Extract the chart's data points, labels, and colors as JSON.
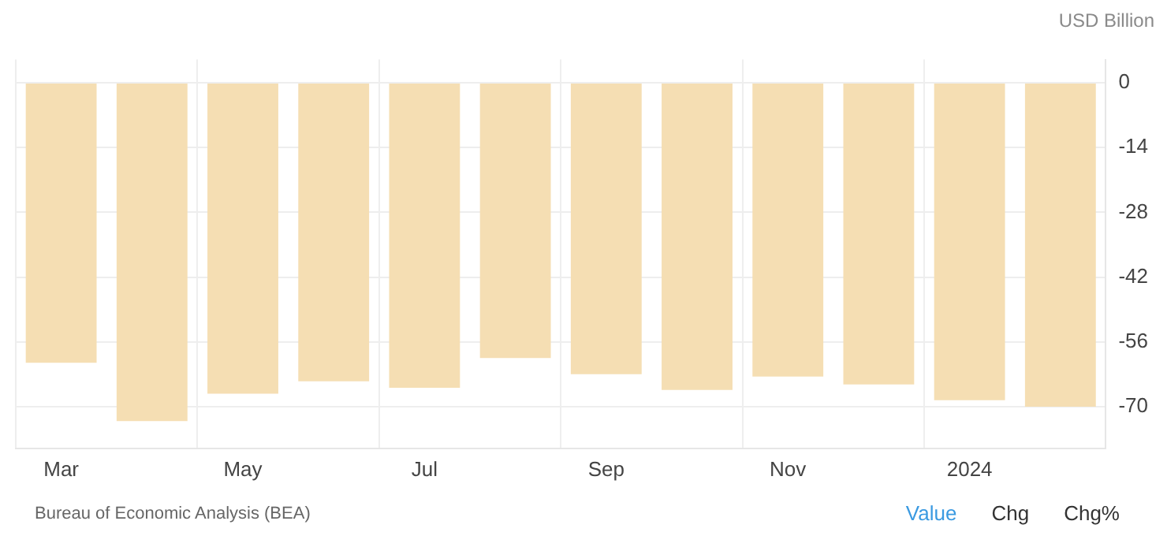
{
  "chart_data": {
    "type": "bar",
    "ylabel": "USD Billion",
    "categories": [
      "Mar",
      null,
      "May",
      null,
      "Jul",
      null,
      "Sep",
      null,
      "Nov",
      null,
      "2024",
      null
    ],
    "values": [
      -60.5,
      -73.1,
      -67.2,
      -64.5,
      -65.9,
      -59.5,
      -63.0,
      -66.4,
      -63.5,
      -65.2,
      -68.6,
      -70.0
    ],
    "color": "#f5deb3",
    "ylim": [
      -79,
      5
    ],
    "yticks": [
      0,
      -14,
      -28,
      -42,
      -56,
      -70
    ],
    "grid": true,
    "annotations": [
      "Bureau of Economic Analysis (BEA)",
      "Value",
      "Chg",
      "Chg%"
    ]
  }
}
